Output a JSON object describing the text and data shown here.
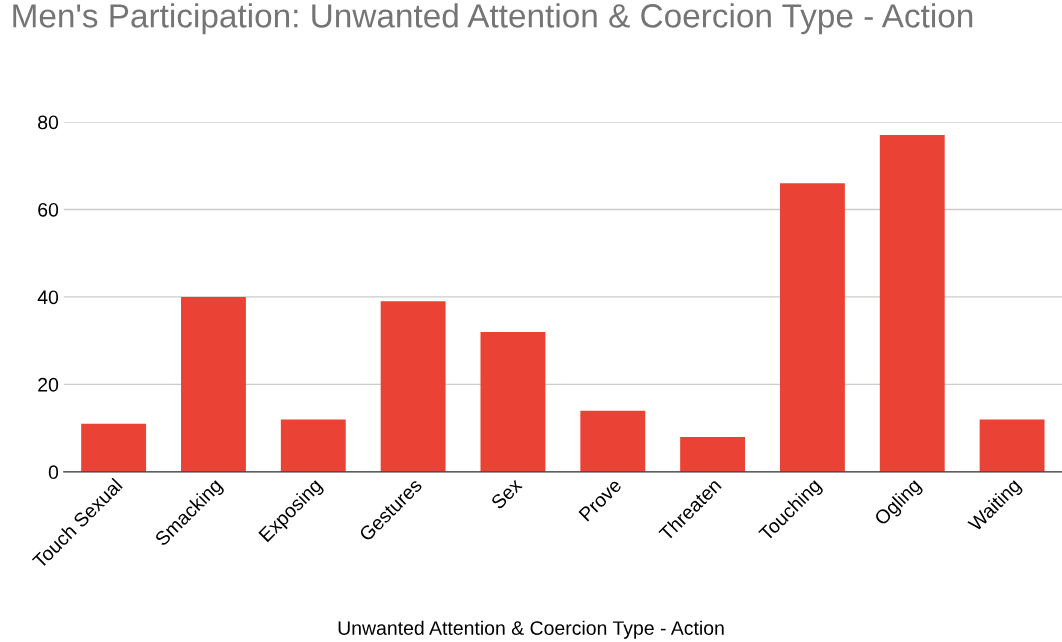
{
  "chart_data": {
    "type": "bar",
    "title": "Men's Participation: Unwanted Attention & Coercion Type - Action",
    "xlabel": "Unwanted Attention & Coercion Type - Action",
    "categories": [
      "Touch Sexual",
      "Smacking",
      "Exposing",
      "Gestures",
      "Sex",
      "Prove",
      "Threaten",
      "Touching",
      "Ogling",
      "Waiting"
    ],
    "values": [
      11,
      40,
      12,
      39,
      32,
      14,
      8,
      66,
      77,
      12
    ],
    "color": "#ea4335",
    "ylim": [
      0,
      80
    ],
    "yticks": [
      0,
      20,
      40,
      60,
      80
    ],
    "grid": "y",
    "legend": false
  }
}
